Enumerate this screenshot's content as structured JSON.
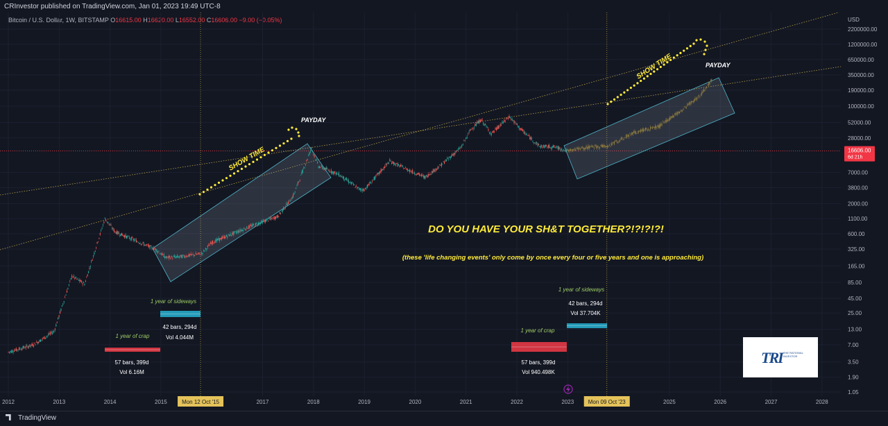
{
  "header": {
    "publisher": "CRInvestor published on TradingView.com, Jan 01, 2023 19:49 UTC-8",
    "symbol": "Bitcoin / U.S. Dollar, 1W, BITSTAMP",
    "ohlc": [
      {
        "k": "O",
        "v": "16615.00"
      },
      {
        "k": "H",
        "v": "16620.00"
      },
      {
        "k": "L",
        "v": "16552.00"
      },
      {
        "k": "C",
        "v": "16606.00"
      }
    ],
    "change": "−9.00 (−0.05%)"
  },
  "footer": {
    "brand": "TradingView"
  },
  "logo": {
    "mark": "TRI",
    "text": "THE RATIONAL INVESTOR"
  },
  "colors": {
    "bg": "#131722",
    "up": "#26a69a",
    "down": "#ef5350",
    "candle_dim": "#8b7a3e",
    "price_line": "#f23645",
    "annot_yellow": "#ffeb3b",
    "annot_green": "#9ccc65",
    "channel": "#4fb6c9",
    "red_box": "#e53945",
    "teal_box": "#26a8c9"
  },
  "chart_data": {
    "type": "candlestick",
    "scale": "log",
    "currency": "USD",
    "interval": "1W",
    "y_ticks": [
      2200000,
      1200000,
      650000,
      350000,
      190000,
      100000,
      52000,
      28000,
      16606,
      7000,
      3800,
      2000,
      1100,
      600,
      325,
      165,
      85,
      45,
      25,
      13,
      7,
      3.5,
      1.9,
      1.05
    ],
    "y_tick_labels": [
      "2200000.00",
      "1200000.00",
      "650000.00",
      "350000.00",
      "190000.00",
      "100000.00",
      "52000.00",
      "28000.00",
      "16606.00",
      "7000.00",
      "3800.00",
      "2000.00",
      "1100.00",
      "600.00",
      "325.00",
      "165.00",
      "85.00",
      "45.00",
      "25.00",
      "13.00",
      "7.00",
      "3.50",
      "1.90",
      "1.05"
    ],
    "price_tag": {
      "value": "16606.00",
      "countdown": "6d 21h"
    },
    "x_ticks": [
      "2012",
      "2013",
      "2014",
      "2015",
      "Mon 12 Oct '15",
      "2017",
      "2018",
      "2019",
      "2020",
      "2021",
      "2022",
      "2023",
      "Mon 09 Oct '23",
      "2025",
      "2026",
      "2027",
      "2028"
    ],
    "price_path": [
      [
        2012.0,
        5.2
      ],
      [
        2012.5,
        7
      ],
      [
        2012.9,
        12
      ],
      [
        2013.25,
        110
      ],
      [
        2013.5,
        80
      ],
      [
        2013.9,
        1100
      ],
      [
        2014.1,
        650
      ],
      [
        2014.4,
        500
      ],
      [
        2014.9,
        320
      ],
      [
        2015.1,
        230
      ],
      [
        2015.4,
        240
      ],
      [
        2015.8,
        270
      ],
      [
        2016.0,
        420
      ],
      [
        2016.5,
        650
      ],
      [
        2016.9,
        900
      ],
      [
        2017.3,
        1200
      ],
      [
        2017.6,
        2700
      ],
      [
        2017.96,
        18500
      ],
      [
        2018.1,
        9000
      ],
      [
        2018.5,
        6500
      ],
      [
        2018.9,
        3600
      ],
      [
        2019.0,
        3500
      ],
      [
        2019.5,
        11000
      ],
      [
        2019.95,
        7200
      ],
      [
        2020.2,
        5800
      ],
      [
        2020.5,
        9300
      ],
      [
        2020.9,
        19000
      ],
      [
        2021.1,
        40000
      ],
      [
        2021.3,
        58000
      ],
      [
        2021.5,
        33000
      ],
      [
        2021.85,
        66000
      ],
      [
        2022.1,
        38000
      ],
      [
        2022.45,
        20000
      ],
      [
        2022.75,
        19500
      ],
      [
        2023.0,
        16606
      ]
    ],
    "projection_path": [
      [
        2023.0,
        16606
      ],
      [
        2023.5,
        20000
      ],
      [
        2023.8,
        20000
      ],
      [
        2024.3,
        35000
      ],
      [
        2024.8,
        45000
      ],
      [
        2025.2,
        80000
      ],
      [
        2025.6,
        150000
      ],
      [
        2025.85,
        300000
      ]
    ],
    "annotations": {
      "headline": "DO YOU HAVE YOUR SH&T TOGETHER?!?!?!?!",
      "subline": "(these 'life changing events' only come by once every four or five years and one is approaching)",
      "show_time": [
        "SHOW TIME",
        "SHOW TIME"
      ],
      "payday": [
        "PAYDAY",
        "PAYDAY"
      ],
      "crap_labels": [
        "1 year of crap",
        "1 year of crap"
      ],
      "sideways_labels": [
        "1 year of sideways",
        "1 year of sideways"
      ],
      "range_stats": [
        {
          "bars": "57 bars, 399d",
          "vol": "Vol 6.16M"
        },
        {
          "bars": "42 bars, 294d",
          "vol": "Vol 4.044M"
        },
        {
          "bars": "57 bars, 399d",
          "vol": "Vol 940.498K"
        },
        {
          "bars": "42 bars, 294d",
          "vol": "Vol 37.704K"
        }
      ]
    }
  }
}
